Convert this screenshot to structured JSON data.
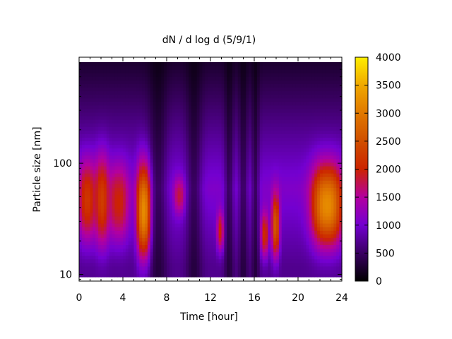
{
  "chart_data": {
    "type": "heatmap",
    "title": "dN / d log d (5/9/1)",
    "xlabel": "Time [hour]",
    "ylabel": "Particle size [nm]",
    "x_range": [
      0,
      24
    ],
    "x_ticks": [
      0,
      4,
      8,
      12,
      16,
      20,
      24
    ],
    "y_scale": "log",
    "y_range": [
      8.7,
      900
    ],
    "y_ticks": [
      10,
      100
    ],
    "colorbar": {
      "range": [
        0,
        4000
      ],
      "ticks": [
        0,
        500,
        1000,
        1500,
        2000,
        2500,
        3000,
        3500,
        4000
      ],
      "palette": [
        {
          "value": 0,
          "color": "#000000"
        },
        {
          "value": 500,
          "color": "#3a0062"
        },
        {
          "value": 1000,
          "color": "#7300d0"
        },
        {
          "value": 1500,
          "color": "#b3009f"
        },
        {
          "value": 2000,
          "color": "#cc2300"
        },
        {
          "value": 2500,
          "color": "#d04f00"
        },
        {
          "value": 3000,
          "color": "#e07800"
        },
        {
          "value": 3500,
          "color": "#f0a800"
        },
        {
          "value": 4000,
          "color": "#ffee00"
        }
      ]
    },
    "background_level": {
      "small_size_nm": 12,
      "small_value": 700,
      "mid_size_nm": 60,
      "mid_value": 1100,
      "large_size_nm": 800,
      "large_value": 250
    },
    "features": [
      {
        "t_start": 0,
        "t_end": 1.5,
        "size_low_nm": 20,
        "size_high_nm": 110,
        "peak": 2200,
        "description": "event"
      },
      {
        "t_start": 1.5,
        "t_end": 2.7,
        "size_low_nm": 18,
        "size_high_nm": 120,
        "peak": 2300
      },
      {
        "t_start": 2.7,
        "t_end": 4.5,
        "size_low_nm": 20,
        "size_high_nm": 100,
        "peak": 2000
      },
      {
        "t_start": 5.3,
        "t_end": 6.5,
        "size_low_nm": 14,
        "size_high_nm": 100,
        "peak": 3200
      },
      {
        "t_start": 8.7,
        "t_end": 9.6,
        "size_low_nm": 35,
        "size_high_nm": 75,
        "peak": 1800
      },
      {
        "t_start": 12.6,
        "t_end": 13.2,
        "size_low_nm": 16,
        "size_high_nm": 38,
        "peak": 2000
      },
      {
        "t_start": 16.6,
        "t_end": 17.3,
        "size_low_nm": 14,
        "size_high_nm": 38,
        "peak": 2100
      },
      {
        "t_start": 17.6,
        "t_end": 18.3,
        "size_low_nm": 14,
        "size_high_nm": 55,
        "peak": 2600
      },
      {
        "t_start": 21.3,
        "t_end": 24,
        "size_low_nm": 18,
        "size_high_nm": 100,
        "peak": 3200
      }
    ],
    "low_valleys": [
      {
        "t": 7.2,
        "width": 1.2
      },
      {
        "t": 10.5,
        "width": 1.0
      },
      {
        "t": 13.7,
        "width": 0.6
      },
      {
        "t": 15.0,
        "width": 0.6
      },
      {
        "t": 16.1,
        "width": 0.5
      }
    ],
    "grid": false
  }
}
